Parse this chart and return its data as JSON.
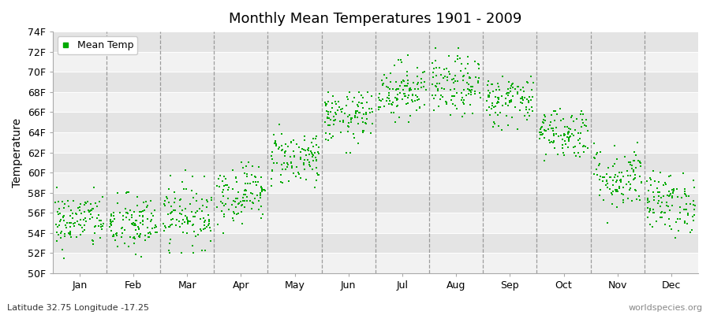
{
  "title": "Monthly Mean Temperatures 1901 - 2009",
  "ylabel": "Temperature",
  "xlabel_bottom_left": "Latitude 32.75 Longitude -17.25",
  "xlabel_bottom_right": "worldspecies.org",
  "yticks": [
    "50F",
    "52F",
    "54F",
    "56F",
    "58F",
    "60F",
    "62F",
    "64F",
    "66F",
    "68F",
    "70F",
    "72F",
    "74F"
  ],
  "yvalues": [
    50,
    52,
    54,
    56,
    58,
    60,
    62,
    64,
    66,
    68,
    70,
    72,
    74
  ],
  "months": [
    "Jan",
    "Feb",
    "Mar",
    "Apr",
    "May",
    "Jun",
    "Jul",
    "Aug",
    "Sep",
    "Oct",
    "Nov",
    "Dec"
  ],
  "dot_color": "#00aa00",
  "background_color": "#ebebeb",
  "band_color_light": "#f2f2f2",
  "band_color_dark": "#e4e4e4",
  "legend_label": "Mean Temp",
  "monthly_means": [
    55.2,
    54.8,
    55.8,
    58.0,
    61.5,
    65.5,
    68.2,
    68.5,
    67.2,
    64.0,
    59.5,
    57.0
  ],
  "monthly_stds": [
    1.4,
    1.5,
    1.6,
    1.5,
    1.4,
    1.3,
    1.4,
    1.5,
    1.3,
    1.3,
    1.6,
    1.5
  ],
  "monthly_mins": [
    51.5,
    51.0,
    52.0,
    54.0,
    58.5,
    62.0,
    65.0,
    65.0,
    64.0,
    61.0,
    53.5,
    53.5
  ],
  "monthly_maxs": [
    58.5,
    58.5,
    61.0,
    61.0,
    65.0,
    68.0,
    73.0,
    73.0,
    71.5,
    68.5,
    65.5,
    61.0
  ],
  "n_years": 109,
  "seed": 42
}
